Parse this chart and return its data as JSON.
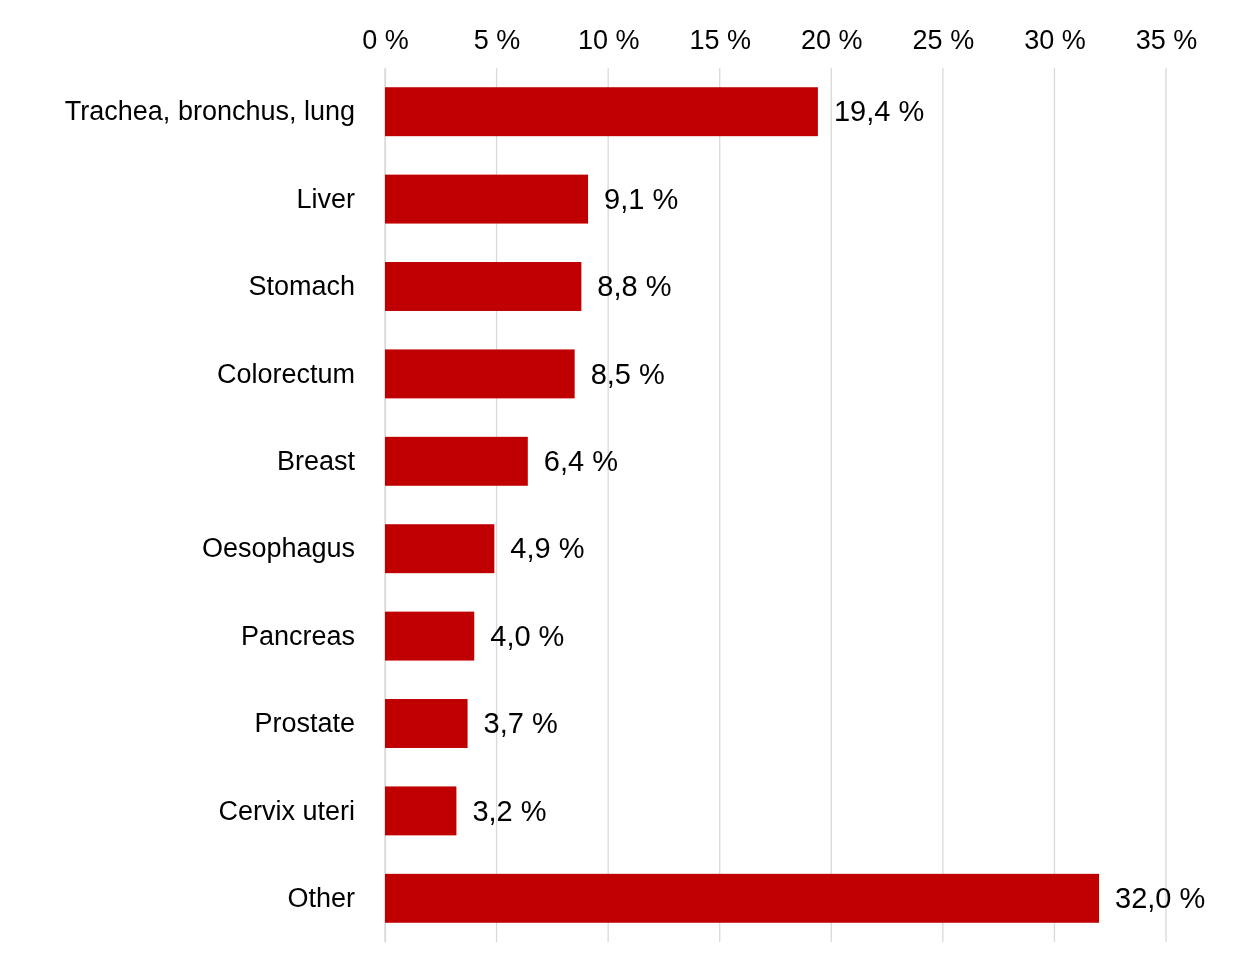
{
  "chart_data": {
    "type": "bar",
    "orientation": "horizontal",
    "categories": [
      "Trachea, bronchus, lung",
      "Liver",
      "Stomach",
      "Colorectum",
      "Breast",
      "Oesophagus",
      "Pancreas",
      "Prostate",
      "Cervix uteri",
      "Other"
    ],
    "values": [
      19.4,
      9.1,
      8.8,
      8.5,
      6.4,
      4.9,
      4.0,
      3.7,
      3.2,
      32.0
    ],
    "value_labels": [
      "19,4 %",
      "9,1 %",
      "8,8 %",
      "8,5 %",
      "6,4 %",
      "4,9 %",
      "4,0 %",
      "3,7 %",
      "3,2 %",
      "32,0 %"
    ],
    "color": "#c00000",
    "xlim": [
      0,
      35
    ],
    "xticks": [
      {
        "value": 0,
        "label": "0 %"
      },
      {
        "value": 5,
        "label": "5 %"
      },
      {
        "value": 10,
        "label": "10 %"
      },
      {
        "value": 15,
        "label": "15 %"
      },
      {
        "value": 20,
        "label": "20 %"
      },
      {
        "value": 25,
        "label": "25 %"
      },
      {
        "value": 30,
        "label": "30 %"
      },
      {
        "value": 35,
        "label": "35 %"
      }
    ],
    "grid": "x"
  }
}
